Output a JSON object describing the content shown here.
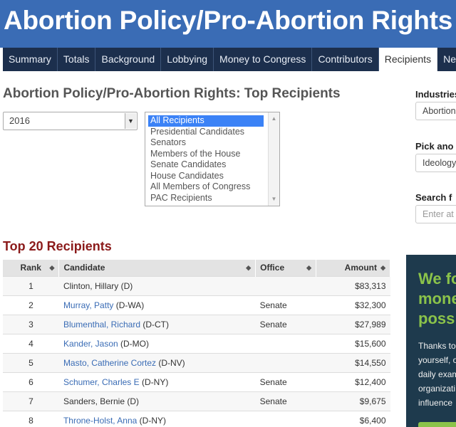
{
  "banner": {
    "title": "Abortion Policy/Pro-Abortion Rights"
  },
  "nav": {
    "tabs": [
      "Summary",
      "Totals",
      "Background",
      "Lobbying",
      "Money to Congress",
      "Contributors",
      "Recipients",
      "News"
    ],
    "active": "Recipients"
  },
  "page_title": "Abortion Policy/Pro-Abortion Rights: Top Recipients",
  "year_select": {
    "value": "2016"
  },
  "recipient_filter": {
    "options": [
      "All Recipients",
      "Presidential Candidates",
      "Senators",
      "Members of the House",
      "Senate Candidates",
      "House Candidates",
      "All Members of Congress",
      "PAC Recipients"
    ],
    "selected": "All Recipients"
  },
  "section_title": "Top 20 Recipients",
  "table": {
    "headers": {
      "rank": "Rank",
      "candidate": "Candidate",
      "office": "Office",
      "amount": "Amount"
    },
    "rows": [
      {
        "rank": "1",
        "name": "Clinton, Hillary",
        "party": " (D)",
        "linked": false,
        "office": "",
        "amount": "$83,313"
      },
      {
        "rank": "2",
        "name": "Murray, Patty",
        "party": " (D-WA)",
        "linked": true,
        "office": "Senate",
        "amount": "$32,300"
      },
      {
        "rank": "3",
        "name": "Blumenthal, Richard",
        "party": " (D-CT)",
        "linked": true,
        "office": "Senate",
        "amount": "$27,989"
      },
      {
        "rank": "4",
        "name": "Kander, Jason",
        "party": " (D-MO)",
        "linked": true,
        "office": "",
        "amount": "$15,600"
      },
      {
        "rank": "5",
        "name": "Masto, Catherine Cortez",
        "party": " (D-NV)",
        "linked": true,
        "office": "",
        "amount": "$14,550"
      },
      {
        "rank": "6",
        "name": "Schumer, Charles E",
        "party": " (D-NY)",
        "linked": true,
        "office": "Senate",
        "amount": "$12,400"
      },
      {
        "rank": "7",
        "name": "Sanders, Bernie",
        "party": " (D)",
        "linked": false,
        "office": "Senate",
        "amount": "$9,675"
      },
      {
        "rank": "8",
        "name": "Throne-Holst, Anna",
        "party": " (D-NY)",
        "linked": true,
        "office": "",
        "amount": "$6,400"
      }
    ]
  },
  "sidebar": {
    "industries_label": "Industries",
    "industries_value": "Abortion",
    "pick_label": "Pick ano",
    "pick_value": "Ideology/",
    "search_label": "Search f",
    "search_placeholder": "Enter at l"
  },
  "promo": {
    "headline": [
      "We fo",
      "mone",
      "poss"
    ],
    "body": [
      "Thanks to",
      "yourself, o",
      "daily exam",
      "organizati",
      "influence"
    ]
  },
  "colors": {
    "banner": "#3a6cb5",
    "nav": "#1c2f4d",
    "section_title": "#8b1a1a",
    "link": "#3a6cb5",
    "promo_bg": "#1e3a4d",
    "promo_accent": "#8bc34a"
  }
}
